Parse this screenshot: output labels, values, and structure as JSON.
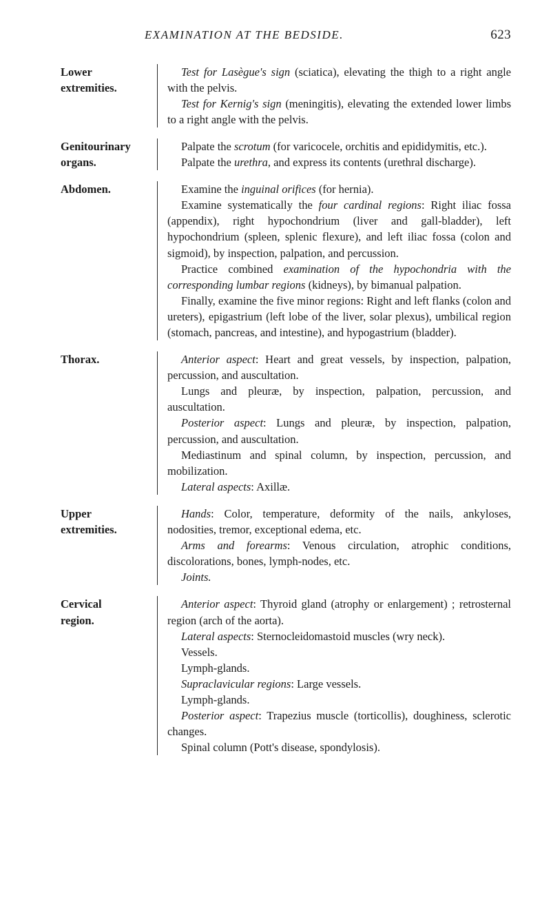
{
  "header": {
    "running_head": "EXAMINATION AT THE BEDSIDE.",
    "page_number": "623"
  },
  "entries": [
    {
      "label_lines": [
        "Lower",
        "extremities."
      ],
      "paragraphs": [
        {
          "html": "<em>Test for Lasègue's sign</em> (sciatica), elevating the thigh to a right angle with the pelvis."
        },
        {
          "html": "<em>Test for Kernig's sign</em> (meningitis), elevating the extended lower limbs to a right angle with the pelvis."
        }
      ]
    },
    {
      "label_lines": [
        "Genitourinary",
        "organs."
      ],
      "paragraphs": [
        {
          "html": "Palpate the <em>scrotum</em> (for varicocele, orchitis and epididymitis, etc.)."
        },
        {
          "html": "Palpate the <em>urethra</em>, and express its contents (urethral discharge)."
        }
      ]
    },
    {
      "label_lines": [
        "Abdomen."
      ],
      "paragraphs": [
        {
          "html": "Examine the <em>inguinal orifices</em> (for hernia)."
        },
        {
          "html": "Examine systematically the <em>four cardinal regions</em>: Right iliac fossa (appendix), right hypochondrium (liver and gall-bladder), left hypochondrium (spleen, splenic flexure), and left iliac fossa (colon and sigmoid), by inspection, palpation, and percussion."
        },
        {
          "html": "Practice combined <em>examination of the hypochondria with the corresponding lumbar regions</em> (kidneys), by bimanual palpation."
        },
        {
          "html": "Finally, examine the five minor regions: Right and left flanks (colon and ureters), epigastrium (left lobe of the liver, solar plexus), umbilical region (stomach, pancreas, and intestine), and hypogastrium (bladder)."
        }
      ]
    },
    {
      "label_lines": [
        "Thorax."
      ],
      "paragraphs": [
        {
          "html": "<em>Anterior aspect</em>: Heart and great vessels, by inspection, palpation, percussion, and auscultation."
        },
        {
          "html": "Lungs and pleuræ, by inspection, palpation, percussion, and auscultation."
        },
        {
          "html": "<em>Posterior aspect</em>: Lungs and pleuræ, by inspection, palpation, percussion, and auscultation."
        },
        {
          "html": "Mediastinum and spinal column, by inspection, percussion, and mobilization."
        },
        {
          "html": "<em>Lateral aspects</em>: Axillæ."
        }
      ]
    },
    {
      "label_lines": [
        "Upper",
        "extremities."
      ],
      "paragraphs": [
        {
          "html": "<em>Hands</em>: Color, temperature, deformity of the nails, ankyloses, nodosities, tremor, exceptional edema, etc."
        },
        {
          "html": "<em>Arms and forearms</em>: Venous circulation, atrophic conditions, discolorations, bones, lymph-nodes, etc."
        },
        {
          "html": "<em>Joints.</em>"
        }
      ]
    },
    {
      "label_lines": [
        "Cervical",
        "region."
      ],
      "paragraphs": [
        {
          "html": "<em>Anterior aspect</em>: Thyroid gland (atrophy or enlargement) ; retrosternal region (arch of the aorta)."
        },
        {
          "html": "<em>Lateral aspects</em>: Sternocleidomastoid muscles (wry neck)."
        },
        {
          "html": "Vessels."
        },
        {
          "html": "Lymph-glands."
        },
        {
          "html": "<em>Supraclavicular regions</em>: Large vessels."
        },
        {
          "html": "Lymph-glands."
        },
        {
          "html": "<em>Posterior aspect</em>: Trapezius muscle (torticollis), doughiness, sclerotic changes."
        },
        {
          "html": "Spinal column (Pott's disease, spondylosis)."
        }
      ]
    }
  ]
}
